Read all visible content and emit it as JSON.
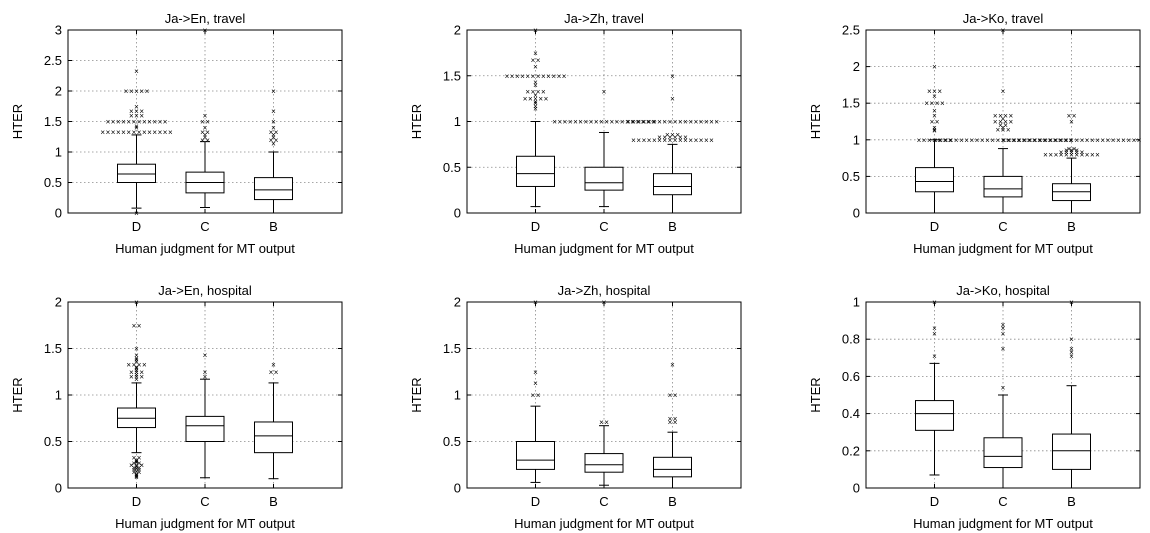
{
  "chart_data": [
    {
      "type": "box",
      "title": "Ja->En, travel",
      "xlabel": "Human judgment for MT output",
      "ylabel": "HTER",
      "ylim": [
        0,
        3
      ],
      "yticks": [
        "0",
        "0.5",
        "1",
        "1.5",
        "2",
        "2.5",
        "3"
      ],
      "categories": [
        "D",
        "C",
        "B"
      ],
      "grid": true,
      "boxes": [
        {
          "cat": "D",
          "whislo": 0.08,
          "q1": 0.5,
          "med": 0.64,
          "q3": 0.8,
          "whishi": 1.28,
          "fliers": [
            0.0,
            1.33,
            1.33,
            1.33,
            1.33,
            1.33,
            1.33,
            1.33,
            1.33,
            1.33,
            1.33,
            1.33,
            1.33,
            1.33,
            1.33,
            1.4,
            1.43,
            1.5,
            1.5,
            1.5,
            1.5,
            1.5,
            1.5,
            1.5,
            1.5,
            1.5,
            1.5,
            1.5,
            1.5,
            1.6,
            1.6,
            1.6,
            1.67,
            1.67,
            1.67,
            1.75,
            2.0,
            2.0,
            2.0,
            2.0,
            2.0,
            2.33
          ]
        },
        {
          "cat": "C",
          "whislo": 0.09,
          "q1": 0.33,
          "med": 0.5,
          "q3": 0.67,
          "whishi": 1.17,
          "fliers": [
            1.2,
            1.2,
            1.25,
            1.29,
            1.33,
            1.33,
            1.4,
            1.5,
            1.5,
            1.6,
            3.0
          ]
        },
        {
          "cat": "B",
          "whislo": 0.0,
          "q1": 0.22,
          "med": 0.38,
          "q3": 0.58,
          "whishi": 1.0,
          "fliers": [
            1.14,
            1.2,
            1.2,
            1.25,
            1.29,
            1.33,
            1.33,
            1.4,
            1.5,
            1.67,
            2.0
          ]
        }
      ]
    },
    {
      "type": "box",
      "title": "Ja->Zh, travel",
      "xlabel": "Human judgment for MT output",
      "ylabel": "HTER",
      "ylim": [
        0,
        2
      ],
      "yticks": [
        "0",
        "0.5",
        "1",
        "1.5",
        "2"
      ],
      "categories": [
        "D",
        "C",
        "B"
      ],
      "grid": true,
      "boxes": [
        {
          "cat": "D",
          "whislo": 0.07,
          "q1": 0.29,
          "med": 0.43,
          "q3": 0.62,
          "whishi": 1.0,
          "fliers": [
            1.14,
            1.17,
            1.2,
            1.22,
            1.25,
            1.25,
            1.25,
            1.25,
            1.25,
            1.29,
            1.33,
            1.33,
            1.33,
            1.33,
            1.4,
            1.43,
            1.5,
            1.5,
            1.5,
            1.5,
            1.5,
            1.5,
            1.5,
            1.5,
            1.5,
            1.5,
            1.5,
            1.5,
            1.6,
            1.67,
            1.67,
            1.75,
            2.0
          ]
        },
        {
          "cat": "C",
          "whislo": 0.07,
          "q1": 0.25,
          "med": 0.33,
          "q3": 0.5,
          "whishi": 0.88,
          "fliers": [
            1.0,
            1.0,
            1.0,
            1.0,
            1.0,
            1.0,
            1.0,
            1.0,
            1.0,
            1.0,
            1.0,
            1.0,
            1.0,
            1.0,
            1.0,
            1.0,
            1.0,
            1.0,
            1.0,
            1.0,
            1.33
          ]
        },
        {
          "cat": "B",
          "whislo": 0.0,
          "q1": 0.2,
          "med": 0.29,
          "q3": 0.43,
          "whishi": 0.75,
          "fliers": [
            0.8,
            0.8,
            0.8,
            0.8,
            0.8,
            0.8,
            0.8,
            0.8,
            0.8,
            0.8,
            0.8,
            0.8,
            0.8,
            0.8,
            0.8,
            0.8,
            0.83,
            0.83,
            0.83,
            0.83,
            0.83,
            0.83,
            0.86,
            0.86,
            0.86,
            1.0,
            1.0,
            1.0,
            1.0,
            1.0,
            1.0,
            1.0,
            1.0,
            1.0,
            1.0,
            1.0,
            1.0,
            1.0,
            1.0,
            1.0,
            1.0,
            1.0,
            1.0,
            1.25,
            1.5
          ]
        }
      ]
    },
    {
      "type": "box",
      "title": "Ja->Ko, travel",
      "xlabel": "Human judgment for MT output",
      "ylabel": "HTER",
      "ylim": [
        0,
        2.5
      ],
      "yticks": [
        "0",
        "0.5",
        "1",
        "1.5",
        "2",
        "2.5"
      ],
      "categories": [
        "D",
        "C",
        "B"
      ],
      "grid": true,
      "boxes": [
        {
          "cat": "D",
          "whislo": 0.0,
          "q1": 0.29,
          "med": 0.43,
          "q3": 0.62,
          "whishi": 1.0,
          "fliers": [
            1.0,
            1.0,
            1.0,
            1.0,
            1.0,
            1.0,
            1.0,
            1.13,
            1.14,
            1.17,
            1.25,
            1.25,
            1.33,
            1.4,
            1.5,
            1.5,
            1.5,
            1.5,
            1.6,
            1.67,
            1.67,
            1.67,
            2.0
          ]
        },
        {
          "cat": "C",
          "whislo": 0.0,
          "q1": 0.22,
          "med": 0.33,
          "q3": 0.5,
          "whishi": 0.88,
          "fliers": [
            1.0,
            1.0,
            1.0,
            1.0,
            1.0,
            1.0,
            1.0,
            1.0,
            1.0,
            1.0,
            1.0,
            1.0,
            1.0,
            1.0,
            1.0,
            1.0,
            1.0,
            1.0,
            1.0,
            1.0,
            1.0,
            1.0,
            1.0,
            1.0,
            1.0,
            1.0,
            1.0,
            1.14,
            1.14,
            1.14,
            1.17,
            1.2,
            1.2,
            1.25,
            1.25,
            1.25,
            1.25,
            1.29,
            1.33,
            1.33,
            1.33,
            1.33,
            1.67,
            2.5
          ]
        },
        {
          "cat": "B",
          "whislo": 0.0,
          "q1": 0.17,
          "med": 0.29,
          "q3": 0.4,
          "whishi": 0.75,
          "fliers": [
            0.8,
            0.8,
            0.8,
            0.8,
            0.8,
            0.8,
            0.8,
            0.8,
            0.8,
            0.8,
            0.8,
            0.83,
            0.83,
            0.83,
            0.83,
            0.83,
            0.86,
            0.86,
            0.86,
            0.88,
            0.88,
            1.0,
            1.0,
            1.0,
            1.0,
            1.0,
            1.0,
            1.0,
            1.0,
            1.0,
            1.0,
            1.0,
            1.0,
            1.0,
            1.0,
            1.0,
            1.0,
            1.0,
            1.0,
            1.0,
            1.0,
            1.0,
            1.0,
            1.0,
            1.0,
            1.0,
            1.0,
            1.0,
            1.25,
            1.33,
            1.33
          ]
        }
      ]
    },
    {
      "type": "box",
      "title": "Ja->En, hospital",
      "xlabel": "Human judgment for MT output",
      "ylabel": "HTER",
      "ylim": [
        0,
        2
      ],
      "yticks": [
        "0",
        "0.5",
        "1",
        "1.5",
        "2"
      ],
      "categories": [
        "D",
        "C",
        "B"
      ],
      "grid": true,
      "boxes": [
        {
          "cat": "D",
          "whislo": 0.38,
          "q1": 0.65,
          "med": 0.75,
          "q3": 0.86,
          "whishi": 1.13,
          "fliers": [
            0.12,
            0.13,
            0.14,
            0.15,
            0.17,
            0.17,
            0.18,
            0.2,
            0.2,
            0.21,
            0.22,
            0.22,
            0.23,
            0.25,
            0.25,
            0.25,
            0.27,
            0.27,
            0.28,
            0.29,
            0.3,
            0.33,
            0.33,
            1.17,
            1.2,
            1.2,
            1.2,
            1.22,
            1.25,
            1.25,
            1.25,
            1.27,
            1.29,
            1.3,
            1.33,
            1.33,
            1.33,
            1.33,
            1.36,
            1.38,
            1.4,
            1.43,
            1.5,
            1.75,
            1.75,
            2.0
          ]
        },
        {
          "cat": "C",
          "whislo": 0.11,
          "q1": 0.5,
          "med": 0.67,
          "q3": 0.77,
          "whishi": 1.17,
          "fliers": [
            1.2,
            1.25,
            1.43
          ]
        },
        {
          "cat": "B",
          "whislo": 0.1,
          "q1": 0.38,
          "med": 0.56,
          "q3": 0.71,
          "whishi": 1.13,
          "fliers": [
            1.25,
            1.25,
            1.33
          ]
        }
      ]
    },
    {
      "type": "box",
      "title": "Ja->Zh, hospital",
      "xlabel": "Human judgment for MT output",
      "ylabel": "HTER",
      "ylim": [
        0,
        2
      ],
      "yticks": [
        "0",
        "0.5",
        "1",
        "1.5",
        "2"
      ],
      "categories": [
        "D",
        "C",
        "B"
      ],
      "grid": true,
      "boxes": [
        {
          "cat": "D",
          "whislo": 0.06,
          "q1": 0.2,
          "med": 0.3,
          "q3": 0.5,
          "whishi": 0.88,
          "fliers": [
            1.0,
            1.0,
            1.13,
            1.25,
            2.0
          ]
        },
        {
          "cat": "C",
          "whislo": 0.03,
          "q1": 0.17,
          "med": 0.25,
          "q3": 0.37,
          "whishi": 0.67,
          "fliers": [
            0.71,
            0.71,
            2.0
          ]
        },
        {
          "cat": "B",
          "whislo": 0.0,
          "q1": 0.12,
          "med": 0.2,
          "q3": 0.33,
          "whishi": 0.6,
          "fliers": [
            0.71,
            0.71,
            0.75,
            0.75,
            1.0,
            1.0,
            1.33
          ]
        }
      ]
    },
    {
      "type": "box",
      "title": "Ja->Ko, hospital",
      "xlabel": "Human judgment for MT output",
      "ylabel": "HTER",
      "ylim": [
        0,
        1
      ],
      "yticks": [
        "0",
        "0.2",
        "0.4",
        "0.6",
        "0.8",
        "1"
      ],
      "categories": [
        "D",
        "C",
        "B"
      ],
      "grid": true,
      "boxes": [
        {
          "cat": "D",
          "whislo": 0.07,
          "q1": 0.31,
          "med": 0.4,
          "q3": 0.47,
          "whishi": 0.67,
          "fliers": [
            0.71,
            0.83,
            0.86,
            1.0
          ]
        },
        {
          "cat": "C",
          "whislo": 0.0,
          "q1": 0.11,
          "med": 0.17,
          "q3": 0.27,
          "whishi": 0.5,
          "fliers": [
            0.54,
            0.75,
            0.83,
            0.86,
            0.88
          ]
        },
        {
          "cat": "B",
          "whislo": 0.0,
          "q1": 0.1,
          "med": 0.2,
          "q3": 0.29,
          "whishi": 0.55,
          "fliers": [
            0.71,
            0.73,
            0.75,
            0.8,
            1.0
          ]
        }
      ]
    }
  ]
}
